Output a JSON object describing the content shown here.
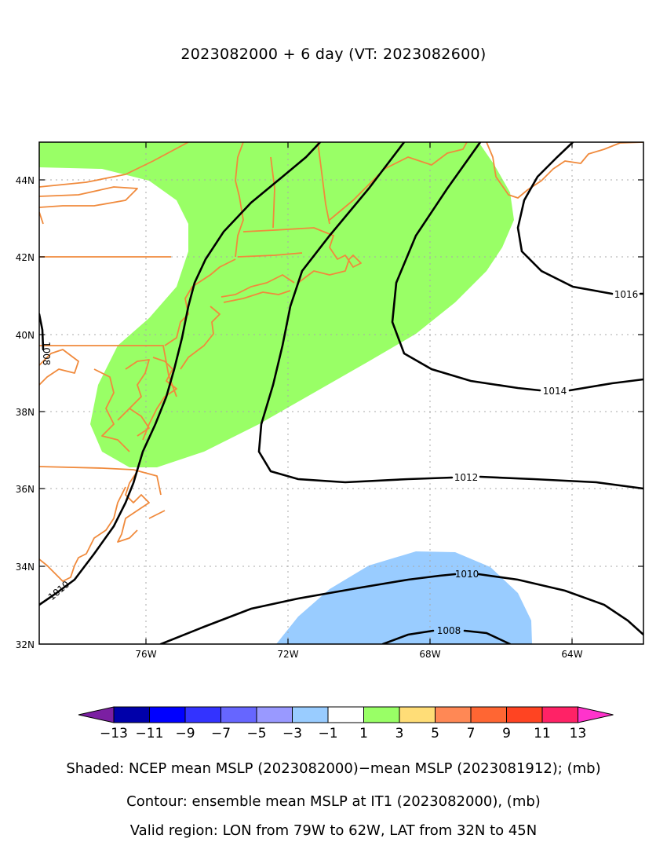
{
  "title": "2023082000 + 6 day (VT: 2023082600)",
  "map": {
    "lon_range": [
      -79,
      -62
    ],
    "lat_range": [
      32,
      45
    ],
    "lon_ticks": [
      "76W",
      "72W",
      "68W",
      "64W"
    ],
    "lat_ticks": [
      "32N",
      "34N",
      "36N",
      "38N",
      "40N",
      "42N",
      "44N"
    ],
    "gridlines": "dotted",
    "coastline_color": "#f08a3c",
    "contours": [
      {
        "level": "1008",
        "label": "1008"
      },
      {
        "level": "1010",
        "label": "1010"
      },
      {
        "level": "1012",
        "label": "1012"
      },
      {
        "level": "1014",
        "label": "1014"
      },
      {
        "level": "1016",
        "label": "1016"
      }
    ],
    "shaded_regions": [
      {
        "value_range": "1 to 3",
        "color": "#99ff66"
      },
      {
        "value_range": "-3 to -1",
        "color": "#99ccff"
      }
    ]
  },
  "colorbar": {
    "labels": [
      "−13",
      "−11",
      "−9",
      "−7",
      "−5",
      "−3",
      "−1",
      "1",
      "3",
      "5",
      "7",
      "9",
      "11",
      "13"
    ],
    "colors": [
      "#7b1fa2",
      "#0000aa",
      "#0000ff",
      "#3333ff",
      "#6666ff",
      "#9999ff",
      "#99ccff",
      "#ffffff",
      "#99ff66",
      "#ffdd77",
      "#ff8855",
      "#ff6633",
      "#ff4422",
      "#ff2266",
      "#ff33cc"
    ]
  },
  "captions": {
    "shaded": "Shaded: NCEP mean MSLP (2023082000)−mean MSLP (2023081912); (mb)",
    "contour": "Contour: ensemble mean MSLP at IT1 (2023082000), (mb)",
    "region": "Valid region: LON from 79W to 62W, LAT from 32N to 45N"
  }
}
